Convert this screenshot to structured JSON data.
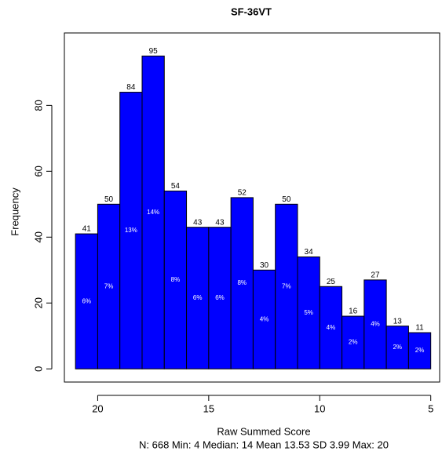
{
  "chart_data": {
    "type": "histogram",
    "title": "SF-36VT",
    "x_label": "Raw Summed Score",
    "subtitle": "N: 668 Min: 4 Median: 14 Mean 13.53 SD 3.99 Max: 20",
    "y_label": "Frequency",
    "bins": [
      21,
      20,
      19,
      18,
      17,
      16,
      15,
      14,
      13,
      12,
      11,
      10,
      9,
      8,
      7,
      6,
      5
    ],
    "counts": [
      41,
      50,
      84,
      95,
      54,
      43,
      43,
      52,
      30,
      50,
      34,
      25,
      16,
      27,
      13,
      11
    ],
    "percent_labels": [
      "6%",
      "7%",
      "13%",
      "14%",
      "8%",
      "6%",
      "6%",
      "8%",
      "4%",
      "7%",
      "5%",
      "4%",
      "2%",
      "4%",
      "2%",
      "2%"
    ],
    "color": "#0000ff",
    "xlim": [
      21.5,
      4.6
    ],
    "xticks": [
      20,
      15,
      10,
      5
    ],
    "ylim": [
      -4,
      102
    ],
    "yticks": [
      0,
      20,
      40,
      60,
      80
    ]
  }
}
